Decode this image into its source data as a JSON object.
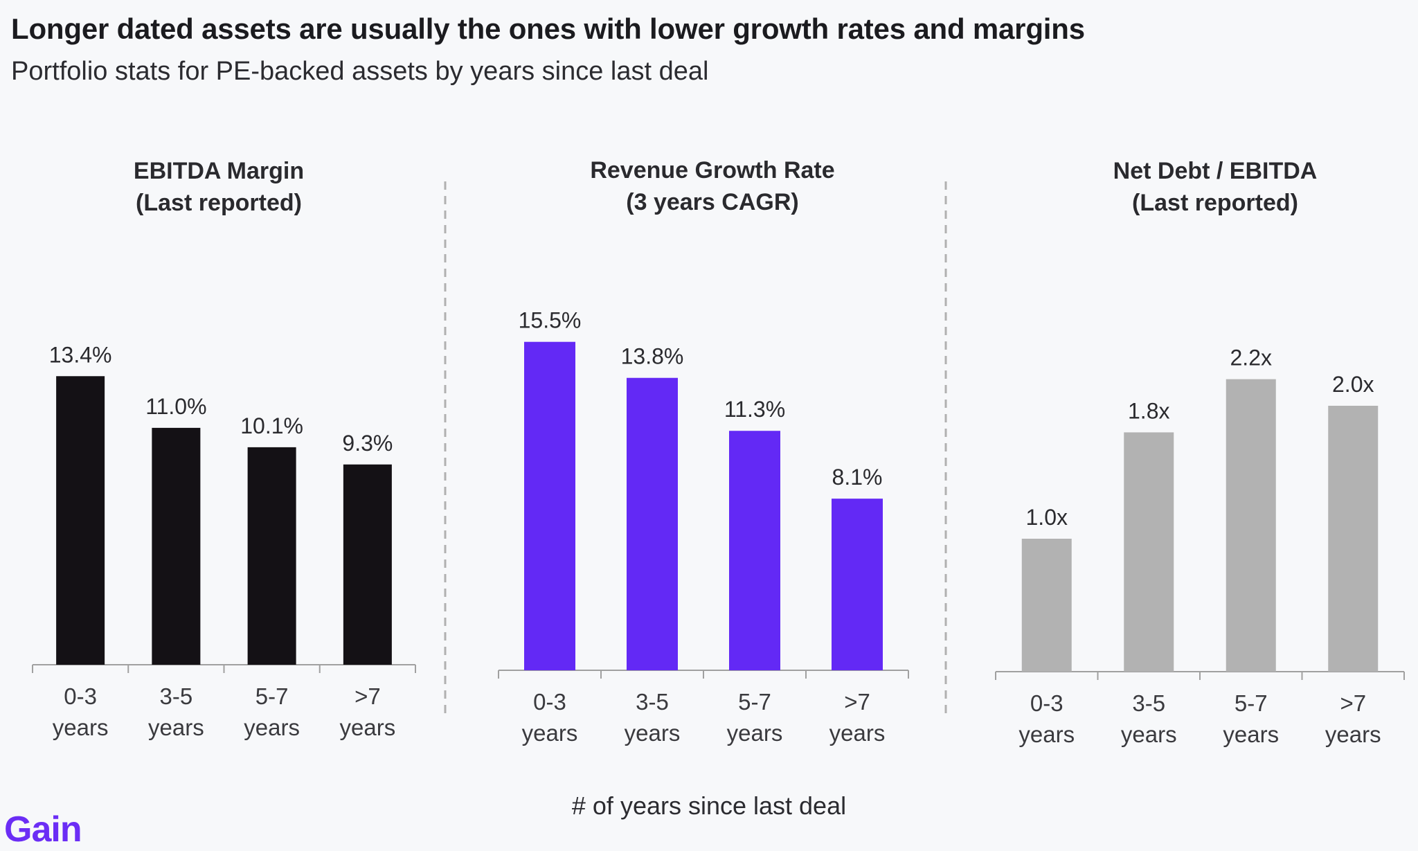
{
  "title": "Longer dated assets are usually the ones with lower growth rates and margins",
  "subtitle": "Portfolio stats for PE-backed assets by years since last deal",
  "x_axis_title": "# of years since last deal",
  "logo_text": "Gain",
  "colors": {
    "ebitda_margin": "#141115",
    "revenue_growth": "#6329f5",
    "net_debt": "#b2b2b2",
    "axis": "#a0a0a0",
    "divider": "#b0b0b0",
    "logo": "#6b2df5"
  },
  "chart_data": [
    {
      "type": "bar",
      "title": "EBITDA Margin",
      "subtitle": "(Last reported)",
      "categories": [
        [
          "0-3",
          "years"
        ],
        [
          "3-5",
          "years"
        ],
        [
          "5-7",
          "years"
        ],
        [
          ">7",
          "years"
        ]
      ],
      "values": [
        13.4,
        11.0,
        10.1,
        9.3
      ],
      "labels": [
        "13.4%",
        "11.0%",
        "10.1%",
        "9.3%"
      ],
      "ylim": [
        0,
        17
      ],
      "color": "#141115",
      "grid": false,
      "legend": "none"
    },
    {
      "type": "bar",
      "title": "Revenue Growth Rate",
      "subtitle": "(3 years CAGR)",
      "categories": [
        [
          "0-3",
          "years"
        ],
        [
          "3-5",
          "years"
        ],
        [
          "5-7",
          "years"
        ],
        [
          ">7",
          "years"
        ]
      ],
      "values": [
        15.5,
        13.8,
        11.3,
        8.1
      ],
      "labels": [
        "15.5%",
        "13.8%",
        "11.3%",
        "8.1%"
      ],
      "ylim": [
        0,
        17
      ],
      "color": "#6329f5",
      "grid": false,
      "legend": "none"
    },
    {
      "type": "bar",
      "title": "Net Debt / EBITDA",
      "subtitle": "(Last reported)",
      "categories": [
        [
          "0-3",
          "years"
        ],
        [
          "3-5",
          "years"
        ],
        [
          "5-7",
          "years"
        ],
        [
          ">7",
          "years"
        ]
      ],
      "values": [
        1.0,
        1.8,
        2.2,
        2.0
      ],
      "labels": [
        "1.0x",
        "1.8x",
        "2.2x",
        "2.0x"
      ],
      "ylim": [
        0,
        2.4
      ],
      "color": "#b2b2b2",
      "grid": false,
      "legend": "none"
    }
  ]
}
